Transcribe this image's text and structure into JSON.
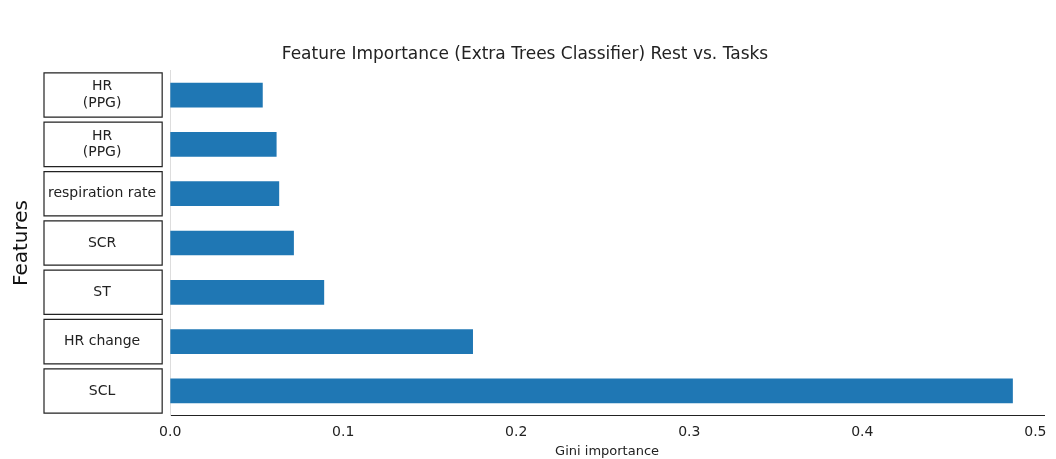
{
  "chart_data": {
    "type": "bar",
    "orientation": "horizontal",
    "title": "Feature Importance (Extra Trees Classifier) Rest vs. Tasks",
    "xlabel": "Gini importance",
    "ylabel": "Features",
    "categories": [
      "HR\n(PPG)",
      "HR\n(PPG)",
      "respiration rate",
      "SCR",
      "ST",
      "HR change",
      "SCL"
    ],
    "values": [
      0.0535,
      0.0615,
      0.063,
      0.0715,
      0.089,
      0.175,
      0.487
    ],
    "color": "#1f77b4",
    "xlim": [
      0,
      0.505
    ],
    "xticks": [
      {
        "value": 0,
        "label": "0.0"
      },
      {
        "value": 0.1,
        "label": "0.1"
      },
      {
        "value": 0.2,
        "label": "0.2"
      },
      {
        "value": 0.3,
        "label": "0.3"
      },
      {
        "value": 0.4,
        "label": "0.4"
      },
      {
        "value": 0.5,
        "label": "0.5"
      }
    ],
    "grid": false,
    "legend": false
  }
}
